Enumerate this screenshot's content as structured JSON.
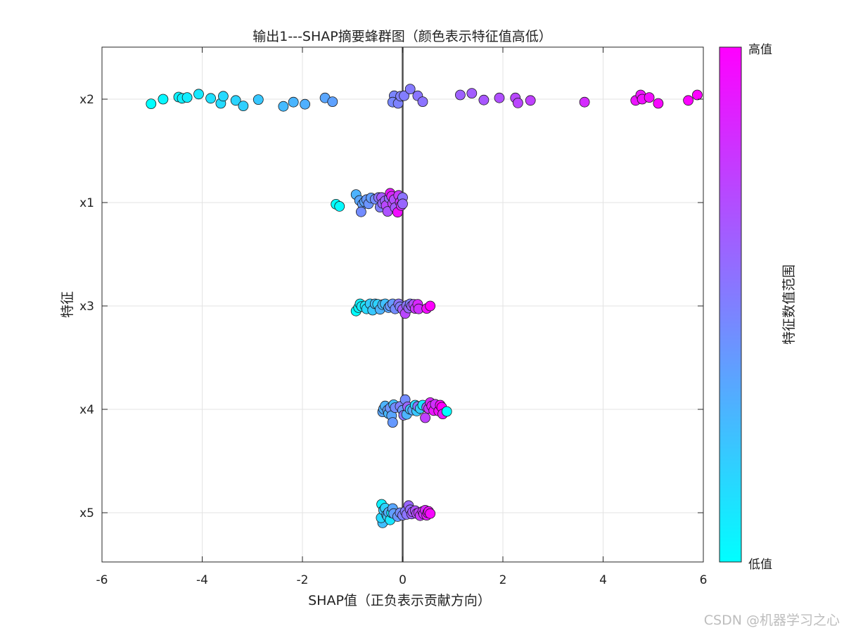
{
  "chart_data": {
    "type": "scatter",
    "title": "输出1---SHAP摘要蜂群图（颜色表示特征值高低）",
    "xlabel": "SHAP值（正负表示贡献方向）",
    "ylabel": "特征",
    "xlim": [
      -6,
      6
    ],
    "x_ticks": [
      -6,
      -4,
      -2,
      0,
      2,
      4,
      6
    ],
    "categories": [
      "x2",
      "x1",
      "x3",
      "x4",
      "x5"
    ],
    "grid": true,
    "zero_line": true,
    "colormap": {
      "low": "#00ffff",
      "high": "#ff00ff"
    },
    "colorbar": {
      "label": "特征数值范围",
      "high_label": "高值",
      "low_label": "低值",
      "position": "right"
    },
    "series": [
      {
        "feature": "x2",
        "points": [
          {
            "shap": -5.02,
            "value": 0.0,
            "jitter": -0.11
          },
          {
            "shap": -4.78,
            "value": 0.03,
            "jitter": 0.0
          },
          {
            "shap": -4.47,
            "value": 0.05,
            "jitter": 0.05
          },
          {
            "shap": -4.4,
            "value": 0.06,
            "jitter": 0.02
          },
          {
            "shap": -4.3,
            "value": 0.07,
            "jitter": 0.04
          },
          {
            "shap": -4.07,
            "value": 0.09,
            "jitter": 0.12
          },
          {
            "shap": -3.83,
            "value": 0.12,
            "jitter": 0.02
          },
          {
            "shap": -3.63,
            "value": 0.14,
            "jitter": -0.1
          },
          {
            "shap": -3.58,
            "value": 0.15,
            "jitter": 0.07
          },
          {
            "shap": -3.33,
            "value": 0.17,
            "jitter": -0.03
          },
          {
            "shap": -3.18,
            "value": 0.19,
            "jitter": -0.16
          },
          {
            "shap": -2.88,
            "value": 0.22,
            "jitter": -0.01
          },
          {
            "shap": -2.38,
            "value": 0.27,
            "jitter": -0.17
          },
          {
            "shap": -2.18,
            "value": 0.29,
            "jitter": -0.07
          },
          {
            "shap": -1.95,
            "value": 0.31,
            "jitter": -0.12
          },
          {
            "shap": -1.55,
            "value": 0.35,
            "jitter": 0.03
          },
          {
            "shap": -1.4,
            "value": 0.37,
            "jitter": -0.06
          },
          {
            "shap": -0.17,
            "value": 0.48,
            "jitter": 0.08
          },
          {
            "shap": -0.2,
            "value": 0.47,
            "jitter": -0.07
          },
          {
            "shap": -0.09,
            "value": 0.49,
            "jitter": -0.1
          },
          {
            "shap": -0.04,
            "value": 0.5,
            "jitter": 0.07
          },
          {
            "shap": 0.03,
            "value": 0.51,
            "jitter": 0.08
          },
          {
            "shap": 0.15,
            "value": 0.52,
            "jitter": 0.24
          },
          {
            "shap": 0.3,
            "value": 0.54,
            "jitter": 0.08
          },
          {
            "shap": 0.4,
            "value": 0.55,
            "jitter": -0.06
          },
          {
            "shap": 1.15,
            "value": 0.62,
            "jitter": 0.1
          },
          {
            "shap": 1.38,
            "value": 0.64,
            "jitter": 0.14
          },
          {
            "shap": 1.62,
            "value": 0.66,
            "jitter": -0.02
          },
          {
            "shap": 1.93,
            "value": 0.69,
            "jitter": 0.03
          },
          {
            "shap": 2.25,
            "value": 0.72,
            "jitter": 0.03
          },
          {
            "shap": 2.3,
            "value": 0.73,
            "jitter": -0.09
          },
          {
            "shap": 2.55,
            "value": 0.75,
            "jitter": -0.03
          },
          {
            "shap": 3.63,
            "value": 0.83,
            "jitter": -0.07
          },
          {
            "shap": 4.65,
            "value": 0.92,
            "jitter": -0.03
          },
          {
            "shap": 4.75,
            "value": 0.93,
            "jitter": 0.1
          },
          {
            "shap": 4.78,
            "value": 0.94,
            "jitter": 0.0
          },
          {
            "shap": 4.92,
            "value": 0.95,
            "jitter": 0.04
          },
          {
            "shap": 5.1,
            "value": 0.97,
            "jitter": -0.1
          },
          {
            "shap": 5.7,
            "value": 0.99,
            "jitter": -0.03
          },
          {
            "shap": 5.88,
            "value": 1.0,
            "jitter": 0.1
          }
        ]
      },
      {
        "feature": "x1",
        "points": [
          {
            "shap": -1.33,
            "value": 0.0,
            "jitter": -0.04
          },
          {
            "shap": -1.26,
            "value": 0.02,
            "jitter": -0.09
          },
          {
            "shap": -0.93,
            "value": 0.3,
            "jitter": 0.19
          },
          {
            "shap": -0.86,
            "value": 0.35,
            "jitter": 0.05
          },
          {
            "shap": -0.8,
            "value": 0.38,
            "jitter": -0.04
          },
          {
            "shap": -0.83,
            "value": 0.45,
            "jitter": -0.22
          },
          {
            "shap": -0.76,
            "value": 0.36,
            "jitter": 0.02
          },
          {
            "shap": -0.72,
            "value": 0.4,
            "jitter": 0.07
          },
          {
            "shap": -0.68,
            "value": 0.42,
            "jitter": -0.03
          },
          {
            "shap": -0.63,
            "value": 0.38,
            "jitter": 0.11
          },
          {
            "shap": -0.55,
            "value": 0.45,
            "jitter": 0.08
          },
          {
            "shap": -0.48,
            "value": 0.55,
            "jitter": 0.12
          },
          {
            "shap": -0.45,
            "value": 0.5,
            "jitter": -0.11
          },
          {
            "shap": -0.42,
            "value": 0.65,
            "jitter": 0.12
          },
          {
            "shap": -0.4,
            "value": 0.6,
            "jitter": -0.02
          },
          {
            "shap": -0.35,
            "value": 0.62,
            "jitter": 0.04
          },
          {
            "shap": -0.33,
            "value": 0.72,
            "jitter": -0.07
          },
          {
            "shap": -0.3,
            "value": 0.68,
            "jitter": -0.21
          },
          {
            "shap": -0.27,
            "value": 0.58,
            "jitter": 0.11
          },
          {
            "shap": -0.25,
            "value": 0.92,
            "jitter": 0.22
          },
          {
            "shap": -0.22,
            "value": 0.85,
            "jitter": 0.15
          },
          {
            "shap": -0.2,
            "value": 0.75,
            "jitter": -0.02
          },
          {
            "shap": -0.17,
            "value": 0.7,
            "jitter": 0.07
          },
          {
            "shap": -0.15,
            "value": 0.65,
            "jitter": -0.12
          },
          {
            "shap": -0.1,
            "value": 0.95,
            "jitter": -0.23
          },
          {
            "shap": -0.08,
            "value": 0.78,
            "jitter": 0.17
          },
          {
            "shap": -0.05,
            "value": 0.8,
            "jitter": 0.01
          },
          {
            "shap": -0.03,
            "value": 0.82,
            "jitter": -0.07
          },
          {
            "shap": 0.0,
            "value": 0.55,
            "jitter": 0.12
          },
          {
            "shap": 0.0,
            "value": 0.6,
            "jitter": -0.03
          }
        ]
      },
      {
        "feature": "x3",
        "points": [
          {
            "shap": -0.93,
            "value": 0.0,
            "jitter": -0.12
          },
          {
            "shap": -0.88,
            "value": 0.03,
            "jitter": -0.04
          },
          {
            "shap": -0.85,
            "value": 0.05,
            "jitter": 0.05
          },
          {
            "shap": -0.82,
            "value": 0.08,
            "jitter": -0.01
          },
          {
            "shap": -0.75,
            "value": 0.1,
            "jitter": 0.0
          },
          {
            "shap": -0.72,
            "value": 0.15,
            "jitter": -0.07
          },
          {
            "shap": -0.65,
            "value": 0.2,
            "jitter": 0.05
          },
          {
            "shap": -0.6,
            "value": 0.22,
            "jitter": -0.1
          },
          {
            "shap": -0.55,
            "value": 0.25,
            "jitter": 0.05
          },
          {
            "shap": -0.5,
            "value": 0.18,
            "jitter": 0.04
          },
          {
            "shap": -0.45,
            "value": 0.3,
            "jitter": -0.08
          },
          {
            "shap": -0.4,
            "value": 0.28,
            "jitter": 0.03
          },
          {
            "shap": -0.35,
            "value": 0.25,
            "jitter": 0.05
          },
          {
            "shap": -0.28,
            "value": 0.35,
            "jitter": -0.04
          },
          {
            "shap": -0.25,
            "value": 0.4,
            "jitter": 0.0
          },
          {
            "shap": -0.2,
            "value": 0.4,
            "jitter": 0.05
          },
          {
            "shap": -0.15,
            "value": 0.45,
            "jitter": -0.07
          },
          {
            "shap": -0.08,
            "value": 0.55,
            "jitter": 0.05
          },
          {
            "shap": -0.05,
            "value": 0.5,
            "jitter": -0.02
          },
          {
            "shap": 0.0,
            "value": 0.65,
            "jitter": -0.08
          },
          {
            "shap": 0.05,
            "value": 0.72,
            "jitter": -0.18
          },
          {
            "shap": 0.08,
            "value": 0.55,
            "jitter": 0.01
          },
          {
            "shap": 0.12,
            "value": 0.6,
            "jitter": -0.05
          },
          {
            "shap": 0.15,
            "value": 0.5,
            "jitter": 0.05
          },
          {
            "shap": 0.18,
            "value": 0.62,
            "jitter": 0.0
          },
          {
            "shap": 0.22,
            "value": 0.7,
            "jitter": 0.04
          },
          {
            "shap": 0.25,
            "value": 0.78,
            "jitter": -0.06
          },
          {
            "shap": 0.3,
            "value": 0.85,
            "jitter": 0.04
          },
          {
            "shap": 0.32,
            "value": 0.82,
            "jitter": -0.07
          },
          {
            "shap": 0.48,
            "value": 0.95,
            "jitter": -0.06
          },
          {
            "shap": 0.55,
            "value": 1.0,
            "jitter": 0.0
          }
        ]
      },
      {
        "feature": "x4",
        "points": [
          {
            "shap": -0.4,
            "value": 0.35,
            "jitter": -0.06
          },
          {
            "shap": -0.38,
            "value": 0.32,
            "jitter": 0.01
          },
          {
            "shap": -0.35,
            "value": 0.3,
            "jitter": 0.08
          },
          {
            "shap": -0.3,
            "value": 0.38,
            "jitter": -0.02
          },
          {
            "shap": -0.28,
            "value": 0.28,
            "jitter": -0.1
          },
          {
            "shap": -0.25,
            "value": 0.42,
            "jitter": 0.03
          },
          {
            "shap": -0.22,
            "value": 0.35,
            "jitter": -0.15
          },
          {
            "shap": -0.2,
            "value": 0.4,
            "jitter": -0.31
          },
          {
            "shap": -0.18,
            "value": 0.25,
            "jitter": 0.11
          },
          {
            "shap": -0.15,
            "value": 0.45,
            "jitter": 0.04
          },
          {
            "shap": -0.05,
            "value": 0.5,
            "jitter": 0.07
          },
          {
            "shap": 0.0,
            "value": 0.4,
            "jitter": -0.02
          },
          {
            "shap": 0.02,
            "value": 0.55,
            "jitter": -0.14
          },
          {
            "shap": 0.05,
            "value": 0.45,
            "jitter": 0.23
          },
          {
            "shap": 0.08,
            "value": 0.3,
            "jitter": -0.12
          },
          {
            "shap": 0.1,
            "value": 0.6,
            "jitter": 0.06
          },
          {
            "shap": 0.15,
            "value": 0.25,
            "jitter": 0.0
          },
          {
            "shap": 0.2,
            "value": 0.35,
            "jitter": -0.02
          },
          {
            "shap": 0.25,
            "value": 0.15,
            "jitter": 0.1
          },
          {
            "shap": 0.28,
            "value": 0.22,
            "jitter": -0.04
          },
          {
            "shap": 0.3,
            "value": 0.55,
            "jitter": 0.07
          },
          {
            "shap": 0.35,
            "value": 0.2,
            "jitter": 0.02
          },
          {
            "shap": 0.4,
            "value": 0.1,
            "jitter": 0.1
          },
          {
            "shap": 0.45,
            "value": 0.75,
            "jitter": -0.2
          },
          {
            "shap": 0.48,
            "value": 0.65,
            "jitter": 0.05
          },
          {
            "shap": 0.52,
            "value": 0.8,
            "jitter": 0.02
          },
          {
            "shap": 0.55,
            "value": 0.85,
            "jitter": 0.16
          },
          {
            "shap": 0.58,
            "value": 0.88,
            "jitter": 0.08
          },
          {
            "shap": 0.62,
            "value": 0.92,
            "jitter": -0.03
          },
          {
            "shap": 0.65,
            "value": 0.82,
            "jitter": 0.12
          },
          {
            "shap": 0.72,
            "value": 0.95,
            "jitter": -0.04
          },
          {
            "shap": 0.75,
            "value": 0.98,
            "jitter": 0.1
          },
          {
            "shap": 0.78,
            "value": 1.0,
            "jitter": 0.05
          },
          {
            "shap": 0.8,
            "value": 0.9,
            "jitter": -0.11
          },
          {
            "shap": 0.88,
            "value": 0.0,
            "jitter": -0.05
          }
        ]
      },
      {
        "feature": "x5",
        "points": [
          {
            "shap": -0.42,
            "value": 0.05,
            "jitter": 0.2
          },
          {
            "shap": -0.4,
            "value": 0.25,
            "jitter": -0.24
          },
          {
            "shap": -0.43,
            "value": 0.15,
            "jitter": -0.12
          },
          {
            "shap": -0.38,
            "value": 0.22,
            "jitter": 0.06
          },
          {
            "shap": -0.35,
            "value": 0.18,
            "jitter": 0.11
          },
          {
            "shap": -0.32,
            "value": 0.3,
            "jitter": -0.05
          },
          {
            "shap": -0.3,
            "value": 0.2,
            "jitter": -0.09
          },
          {
            "shap": -0.28,
            "value": 0.32,
            "jitter": 0.01
          },
          {
            "shap": -0.25,
            "value": 0.1,
            "jitter": -0.17
          },
          {
            "shap": -0.22,
            "value": 0.05,
            "jitter": 0.0
          },
          {
            "shap": -0.2,
            "value": 0.35,
            "jitter": 0.1
          },
          {
            "shap": -0.18,
            "value": 0.38,
            "jitter": -0.02
          },
          {
            "shap": -0.1,
            "value": 0.4,
            "jitter": -0.09
          },
          {
            "shap": -0.05,
            "value": 0.45,
            "jitter": 0.0
          },
          {
            "shap": 0.0,
            "value": 0.5,
            "jitter": -0.06
          },
          {
            "shap": 0.05,
            "value": 0.52,
            "jitter": 0.03
          },
          {
            "shap": 0.08,
            "value": 0.55,
            "jitter": -0.04
          },
          {
            "shap": 0.12,
            "value": 0.6,
            "jitter": 0.17
          },
          {
            "shap": 0.15,
            "value": 0.58,
            "jitter": 0.07
          },
          {
            "shap": 0.18,
            "value": 0.62,
            "jitter": -0.03
          },
          {
            "shap": 0.2,
            "value": 0.65,
            "jitter": 0.02
          },
          {
            "shap": 0.25,
            "value": 0.68,
            "jitter": 0.05
          },
          {
            "shap": 0.28,
            "value": 0.7,
            "jitter": -0.02
          },
          {
            "shap": 0.32,
            "value": 0.75,
            "jitter": 0.0
          },
          {
            "shap": 0.35,
            "value": 0.78,
            "jitter": -0.07
          },
          {
            "shap": 0.4,
            "value": 0.8,
            "jitter": 0.03
          },
          {
            "shap": 0.42,
            "value": 0.82,
            "jitter": -0.03
          },
          {
            "shap": 0.45,
            "value": 0.85,
            "jitter": 0.06
          },
          {
            "shap": 0.48,
            "value": 0.9,
            "jitter": -0.06
          },
          {
            "shap": 0.5,
            "value": 0.92,
            "jitter": 0.0
          },
          {
            "shap": 0.52,
            "value": 0.95,
            "jitter": 0.03
          },
          {
            "shap": 0.55,
            "value": 0.97,
            "jitter": -0.02
          }
        ]
      }
    ]
  },
  "watermark": "CSDN @机器学习之心"
}
